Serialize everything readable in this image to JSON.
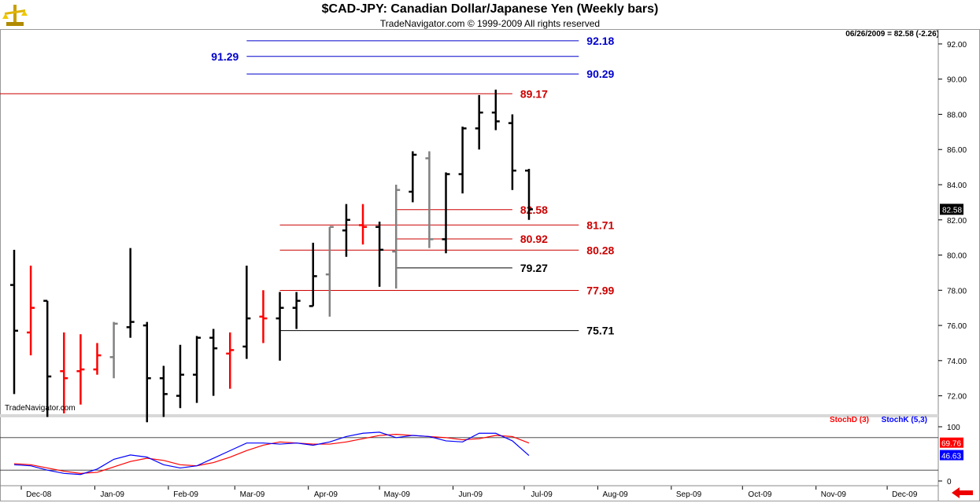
{
  "header": {
    "title": "$CAD-JPY:  Canadian Dollar/Japanese Yen  (Weekly bars)",
    "subtitle": "TradeNavigator.com © 1999-2009 All rights reserved",
    "readout": "06/26/2009 = 82.58 (-2.26)",
    "watermark": "TradeNavigator.com"
  },
  "colors": {
    "black_bar": "#000000",
    "red_bar": "#ff0000",
    "gray_bar": "#808080",
    "blue_level": "#0000cc",
    "red_level": "#cc0000",
    "stochD": "#ff0000",
    "stochK": "#0000ff"
  },
  "chart_data": [
    {
      "type": "ohlc",
      "title": "$CAD-JPY:  Canadian Dollar/Japanese Yen  (Weekly bars)",
      "ylim": [
        71,
        92.8
      ],
      "y_ticks": [
        "72.00",
        "74.00",
        "76.00",
        "78.00",
        "80.00",
        "82.00",
        "84.00",
        "86.00",
        "88.00",
        "90.00",
        "92.00"
      ],
      "x_ticks": [
        "Dec-08",
        "Jan-09",
        "Feb-09",
        "Mar-09",
        "Apr-09",
        "May-09",
        "Jun-09",
        "Jul-09",
        "Aug-09",
        "Sep-09",
        "Oct-09",
        "Nov-09",
        "Dec-09"
      ],
      "last_price_label": "82.58",
      "bars": [
        {
          "date": "2008-11-28",
          "o": 78.3,
          "h": 80.3,
          "l": 72.1,
          "c": 75.7,
          "color": "black"
        },
        {
          "date": "2008-12-05",
          "o": 75.6,
          "h": 79.4,
          "l": 74.3,
          "c": 77.0,
          "color": "red"
        },
        {
          "date": "2008-12-12",
          "o": 77.4,
          "h": 77.4,
          "l": 70.8,
          "c": 73.1,
          "color": "black"
        },
        {
          "date": "2008-12-19",
          "o": 73.4,
          "h": 75.6,
          "l": 71.0,
          "c": 73.0,
          "color": "red"
        },
        {
          "date": "2008-12-26",
          "o": 73.4,
          "h": 75.5,
          "l": 71.5,
          "c": 73.5,
          "color": "red"
        },
        {
          "date": "2009-01-02",
          "o": 73.5,
          "h": 75.0,
          "l": 73.2,
          "c": 74.3,
          "color": "red"
        },
        {
          "date": "2009-01-09",
          "o": 74.2,
          "h": 76.2,
          "l": 73.0,
          "c": 76.1,
          "color": "gray"
        },
        {
          "date": "2009-01-16",
          "o": 75.9,
          "h": 80.4,
          "l": 75.3,
          "c": 76.2,
          "color": "black"
        },
        {
          "date": "2009-01-23",
          "o": 76.0,
          "h": 76.2,
          "l": 70.5,
          "c": 73.0,
          "color": "black"
        },
        {
          "date": "2009-01-30",
          "o": 73.0,
          "h": 73.7,
          "l": 70.8,
          "c": 72.1,
          "color": "black"
        },
        {
          "date": "2009-02-06",
          "o": 72.0,
          "h": 74.9,
          "l": 71.3,
          "c": 73.2,
          "color": "black"
        },
        {
          "date": "2009-02-13",
          "o": 73.2,
          "h": 75.4,
          "l": 71.6,
          "c": 75.3,
          "color": "black"
        },
        {
          "date": "2009-02-20",
          "o": 75.3,
          "h": 75.8,
          "l": 72.0,
          "c": 74.7,
          "color": "black"
        },
        {
          "date": "2009-02-27",
          "o": 74.4,
          "h": 75.6,
          "l": 72.4,
          "c": 74.6,
          "color": "red"
        },
        {
          "date": "2009-03-06",
          "o": 74.8,
          "h": 79.4,
          "l": 74.1,
          "c": 76.4,
          "color": "black"
        },
        {
          "date": "2009-03-13",
          "o": 76.5,
          "h": 78.0,
          "l": 75.0,
          "c": 76.4,
          "color": "red"
        },
        {
          "date": "2009-03-20",
          "o": 76.4,
          "h": 77.9,
          "l": 74.0,
          "c": 77.0,
          "color": "black"
        },
        {
          "date": "2009-03-27",
          "o": 77.0,
          "h": 77.9,
          "l": 75.8,
          "c": 77.4,
          "color": "black"
        },
        {
          "date": "2009-04-03",
          "o": 77.1,
          "h": 80.7,
          "l": 77.1,
          "c": 78.8,
          "color": "black"
        },
        {
          "date": "2009-04-10",
          "o": 78.9,
          "h": 81.6,
          "l": 76.5,
          "c": 81.6,
          "color": "gray"
        },
        {
          "date": "2009-04-17",
          "o": 81.4,
          "h": 82.9,
          "l": 79.9,
          "c": 82.0,
          "color": "black"
        },
        {
          "date": "2009-04-24",
          "o": 81.7,
          "h": 82.9,
          "l": 80.6,
          "c": 81.6,
          "color": "red"
        },
        {
          "date": "2009-05-01",
          "o": 81.6,
          "h": 81.9,
          "l": 78.2,
          "c": 80.3,
          "color": "black"
        },
        {
          "date": "2009-05-08",
          "o": 80.2,
          "h": 84.0,
          "l": 78.1,
          "c": 83.7,
          "color": "gray"
        },
        {
          "date": "2009-05-15",
          "o": 83.6,
          "h": 85.9,
          "l": 83.0,
          "c": 85.7,
          "color": "black"
        },
        {
          "date": "2009-05-22",
          "o": 85.5,
          "h": 85.9,
          "l": 80.4,
          "c": 80.9,
          "color": "gray"
        },
        {
          "date": "2009-05-29",
          "o": 80.9,
          "h": 84.7,
          "l": 80.1,
          "c": 84.6,
          "color": "black"
        },
        {
          "date": "2009-06-05",
          "o": 84.6,
          "h": 87.3,
          "l": 83.5,
          "c": 87.2,
          "color": "black"
        },
        {
          "date": "2009-06-12",
          "o": 87.2,
          "h": 89.1,
          "l": 86.0,
          "c": 88.1,
          "color": "black"
        },
        {
          "date": "2009-06-19",
          "o": 88.1,
          "h": 89.4,
          "l": 87.1,
          "c": 87.6,
          "color": "black"
        },
        {
          "date": "2009-06-26",
          "o": 87.5,
          "h": 88.0,
          "l": 83.7,
          "c": 84.8,
          "color": "black"
        },
        {
          "date": "2009-07-03",
          "o": 84.8,
          "h": 84.9,
          "l": 82.0,
          "c": 82.6,
          "color": "black"
        }
      ],
      "levels": [
        {
          "label": "92.18",
          "value": 92.18,
          "color": "blue_level",
          "x_start": "2009-03-06",
          "x_end": "2009-07-24",
          "label_side": "right"
        },
        {
          "label": "91.29",
          "value": 91.29,
          "color": "blue_level",
          "x_start": "2009-03-06",
          "x_end": "2009-07-24",
          "label_side": "left"
        },
        {
          "label": "90.29",
          "value": 90.29,
          "color": "blue_level",
          "x_start": "2009-03-06",
          "x_end": "2009-07-24",
          "label_side": "right"
        },
        {
          "label": "89.17",
          "value": 89.17,
          "color": "red_level",
          "x_start": "2008-11-14",
          "x_end": "2009-06-26",
          "label_side": "right"
        },
        {
          "label": "82.58",
          "value": 82.58,
          "color": "red_level",
          "x_start": "2009-05-08",
          "x_end": "2009-06-26",
          "label_side": "right"
        },
        {
          "label": "81.71",
          "value": 81.71,
          "color": "red_level",
          "x_start": "2009-03-20",
          "x_end": "2009-07-24",
          "label_side": "right"
        },
        {
          "label": "80.92",
          "value": 80.92,
          "color": "red_level",
          "x_start": "2009-05-08",
          "x_end": "2009-06-26",
          "label_side": "right"
        },
        {
          "label": "80.28",
          "value": 80.28,
          "color": "red_level",
          "x_start": "2009-03-20",
          "x_end": "2009-07-24",
          "label_side": "right"
        },
        {
          "label": "79.27",
          "value": 79.27,
          "color": "black_bar",
          "x_start": "2009-05-08",
          "x_end": "2009-06-26",
          "label_side": "right"
        },
        {
          "label": "77.99",
          "value": 77.99,
          "color": "red_level",
          "x_start": "2009-03-20",
          "x_end": "2009-07-24",
          "label_side": "right"
        },
        {
          "label": "75.71",
          "value": 75.71,
          "color": "black_bar",
          "x_start": "2009-03-20",
          "x_end": "2009-07-24",
          "label_side": "right"
        }
      ]
    },
    {
      "type": "line",
      "title": "",
      "ylim": [
        0,
        100
      ],
      "y_ticks": [
        "0",
        "100"
      ],
      "reference_lines": [
        20,
        80
      ],
      "series": [
        {
          "name": "StochD (3)",
          "color": "stochD",
          "last_label": "69.76",
          "values": [
            32,
            30,
            24,
            18,
            14,
            16,
            26,
            36,
            42,
            38,
            30,
            28,
            34,
            44,
            56,
            66,
            72,
            70,
            68,
            68,
            72,
            78,
            84,
            86,
            84,
            82,
            80,
            76,
            78,
            84,
            82,
            70
          ]
        },
        {
          "name": "StochK (5,3)",
          "color": "stochK",
          "last_label": "46.63",
          "values": [
            30,
            28,
            20,
            14,
            12,
            22,
            40,
            48,
            44,
            30,
            24,
            28,
            42,
            56,
            70,
            70,
            68,
            70,
            66,
            72,
            82,
            88,
            90,
            80,
            84,
            82,
            74,
            72,
            88,
            88,
            74,
            47
          ]
        }
      ]
    }
  ]
}
